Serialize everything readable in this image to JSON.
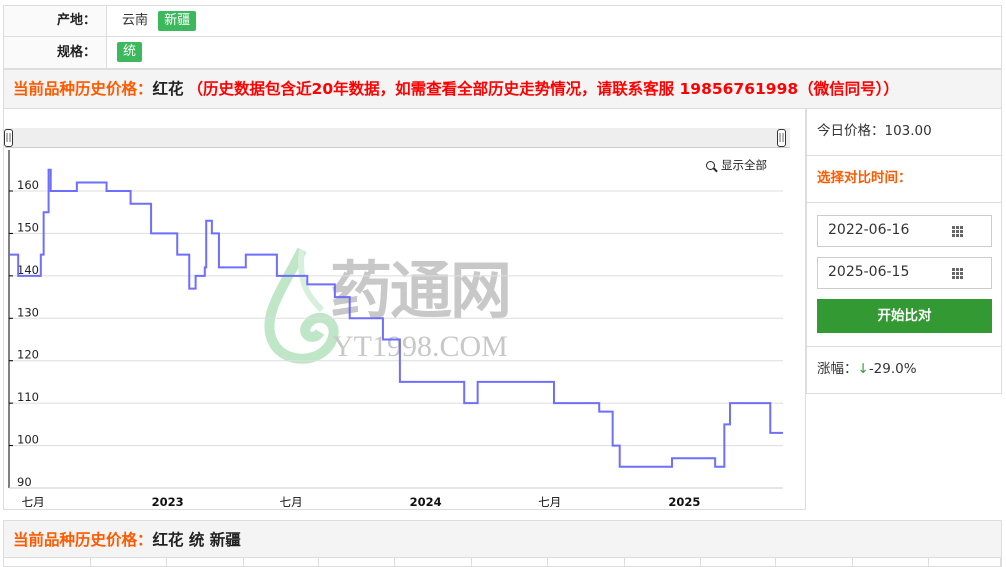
{
  "filters": {
    "origin_label": "产地：",
    "origins": [
      {
        "label": "云南",
        "selected": false
      },
      {
        "label": "新疆",
        "selected": true
      }
    ],
    "spec_label": "规格：",
    "specs": [
      {
        "label": "统",
        "selected": true
      }
    ]
  },
  "history_header": {
    "prefix": "当前品种历史价格：",
    "name": "红花",
    "notice": "（历史数据包含近20年数据，如需查看全部历史走势情况，请联系客服 19856761998（微信同号））"
  },
  "chart": {
    "show_all_label": "显示全部",
    "watermark": {
      "cn": "药通网",
      "en": "YT1998.COM"
    },
    "line_color": "#6666ff"
  },
  "chart_data": {
    "type": "line",
    "step": true,
    "title": "",
    "xlabel": "",
    "ylabel": "",
    "xlim": [
      "2022-06-16",
      "2025-06-15"
    ],
    "ylim": [
      88,
      170
    ],
    "yticks": [
      90,
      100,
      110,
      120,
      130,
      140,
      150,
      160
    ],
    "xticks": [
      {
        "date": "2022-07-01",
        "label": "七月",
        "bold": false
      },
      {
        "date": "2023-01-01",
        "label": "2023",
        "bold": true
      },
      {
        "date": "2023-07-01",
        "label": "七月",
        "bold": false
      },
      {
        "date": "2024-01-01",
        "label": "2024",
        "bold": true
      },
      {
        "date": "2024-07-01",
        "label": "七月",
        "bold": false
      },
      {
        "date": "2025-01-01",
        "label": "2025",
        "bold": true
      }
    ],
    "grid": true,
    "series": [
      {
        "values": [
          [
            "2022-06-16",
            145
          ],
          [
            "2022-06-29",
            140
          ],
          [
            "2022-07-31",
            145
          ],
          [
            "2022-08-04",
            155
          ],
          [
            "2022-08-11",
            165
          ],
          [
            "2022-08-14",
            160
          ],
          [
            "2022-09-20",
            162
          ],
          [
            "2022-11-01",
            160
          ],
          [
            "2022-12-05",
            157
          ],
          [
            "2023-01-03",
            150
          ],
          [
            "2023-02-09",
            145
          ],
          [
            "2023-02-26",
            137
          ],
          [
            "2023-03-07",
            140
          ],
          [
            "2023-03-20",
            142
          ],
          [
            "2023-03-22",
            153
          ],
          [
            "2023-03-30",
            150
          ],
          [
            "2023-04-09",
            142
          ],
          [
            "2023-05-17",
            145
          ],
          [
            "2023-06-30",
            140
          ],
          [
            "2023-08-12",
            138
          ],
          [
            "2023-09-20",
            135
          ],
          [
            "2023-10-11",
            130
          ],
          [
            "2023-11-27",
            125
          ],
          [
            "2023-12-21",
            115
          ],
          [
            "2024-03-21",
            110
          ],
          [
            "2024-04-09",
            115
          ],
          [
            "2024-07-26",
            110
          ],
          [
            "2024-09-28",
            108
          ],
          [
            "2024-10-17",
            100
          ],
          [
            "2024-10-27",
            95
          ],
          [
            "2025-01-09",
            97
          ],
          [
            "2025-03-11",
            95
          ],
          [
            "2025-03-24",
            105
          ],
          [
            "2025-04-01",
            110
          ],
          [
            "2025-05-28",
            103
          ],
          [
            "2025-06-15",
            103
          ]
        ]
      }
    ]
  },
  "sidebar": {
    "today_price_label": "今日价格：",
    "today_price": "103.00",
    "compare_label": "选择对比时间：",
    "start_date": "2022-06-16",
    "end_date": "2025-06-15",
    "compare_button": "开始比对",
    "change_label": "涨幅：",
    "change_arrow": "↓",
    "change_value": "-29.0%"
  },
  "bottom": {
    "prefix": "当前品种历史价格：",
    "title": "红花 统 新疆"
  }
}
